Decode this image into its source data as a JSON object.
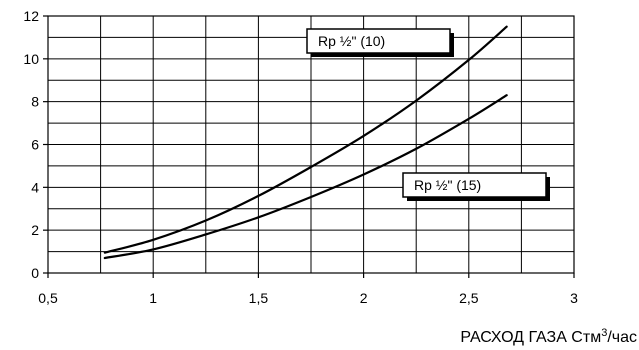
{
  "chart_data": {
    "type": "line",
    "title": "",
    "xlabel": {
      "prefix": "РАСХОД ГАЗА Стм",
      "superscript": "3",
      "suffix": "/час"
    },
    "ylabel": "",
    "xlim": [
      0.5,
      3
    ],
    "ylim": [
      0,
      12
    ],
    "x_ticks": [
      0.5,
      1,
      1.5,
      2,
      2.5,
      3
    ],
    "x_tick_labels": [
      "0,5",
      "1",
      "1,5",
      "2",
      "2,5",
      "3"
    ],
    "y_ticks": [
      0,
      2,
      4,
      6,
      8,
      10,
      12
    ],
    "y_tick_labels": [
      "0",
      "2",
      "4",
      "6",
      "8",
      "10",
      "12"
    ],
    "grid": {
      "horizontal_minor_step": 1,
      "vertical_minor_step": 0.25
    },
    "series": [
      {
        "name": "Rp ½\" (10)",
        "color": "#000000",
        "x": [
          0.77,
          1.0,
          1.25,
          1.5,
          1.75,
          2.0,
          2.25,
          2.5,
          2.68
        ],
        "y": [
          0.95,
          1.55,
          2.45,
          3.6,
          4.95,
          6.4,
          8.05,
          9.95,
          11.5
        ]
      },
      {
        "name": "Rp ½\" (15)",
        "color": "#000000",
        "x": [
          0.77,
          1.0,
          1.25,
          1.5,
          1.75,
          2.0,
          2.25,
          2.5,
          2.68
        ],
        "y": [
          0.7,
          1.1,
          1.8,
          2.6,
          3.55,
          4.6,
          5.8,
          7.2,
          8.3
        ]
      }
    ]
  }
}
